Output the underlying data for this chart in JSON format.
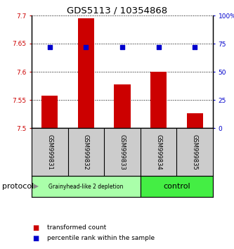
{
  "title": "GDS5113 / 10354868",
  "samples": [
    "GSM999831",
    "GSM999832",
    "GSM999833",
    "GSM999834",
    "GSM999835"
  ],
  "bar_values": [
    7.558,
    7.695,
    7.578,
    7.6,
    7.526
  ],
  "percentile_values": [
    72,
    72,
    72,
    72,
    72
  ],
  "bar_color": "#cc0000",
  "percentile_color": "#0000cc",
  "ylim_left": [
    7.5,
    7.7
  ],
  "ylim_right": [
    0,
    100
  ],
  "yticks_left": [
    7.5,
    7.55,
    7.6,
    7.65,
    7.7
  ],
  "ytick_labels_left": [
    "7.5",
    "7.55",
    "7.6",
    "7.65",
    "7.7"
  ],
  "yticks_right": [
    0,
    25,
    50,
    75,
    100
  ],
  "ytick_labels_right": [
    "0",
    "25",
    "50",
    "75",
    "100%"
  ],
  "group1_label": "Grainyhead-like 2 depletion",
  "group1_color": "#aaffaa",
  "group1_n": 3,
  "group2_label": "control",
  "group2_color": "#44ee44",
  "group2_n": 2,
  "protocol_label": "protocol",
  "legend_items": [
    {
      "color": "#cc0000",
      "label": "transformed count"
    },
    {
      "color": "#0000cc",
      "label": "percentile rank within the sample"
    }
  ],
  "bar_bottom": 7.5,
  "background_color": "#ffffff",
  "tick_color_left": "#cc0000",
  "tick_color_right": "#0000cc"
}
